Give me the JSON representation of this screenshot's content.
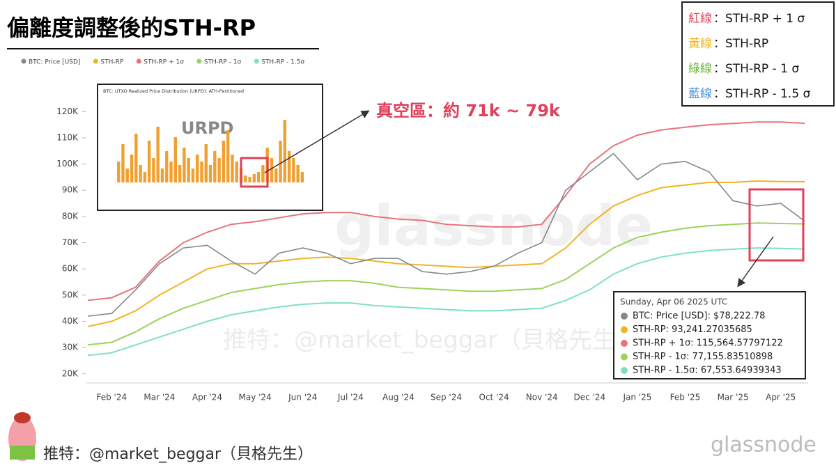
{
  "chart_data": {
    "type": "line",
    "title": "偏離度調整後的STH-RP",
    "categories": [
      null,
      "Feb '24",
      null,
      "Mar '24",
      null,
      "Apr '24",
      null,
      "May '24",
      null,
      "Jun '24",
      null,
      "Jul '24",
      null,
      "Aug '24",
      null,
      "Sep '24",
      null,
      "Oct '24",
      null,
      "Nov '24",
      null,
      "Dec '24",
      null,
      "Jan '25",
      null,
      "Feb '25",
      null,
      "Mar '25",
      null,
      "Apr '25",
      null
    ],
    "series": [
      {
        "name": "BTC: Price [USD]",
        "color": "#7f8a8c",
        "values": [
          42000,
          43000,
          52000,
          62000,
          68000,
          69000,
          63000,
          58000,
          66000,
          68000,
          66000,
          62000,
          64000,
          64000,
          59000,
          58000,
          59000,
          61000,
          66000,
          70000,
          90000,
          97000,
          104000,
          94000,
          100000,
          101000,
          97000,
          86000,
          84000,
          85000,
          78222.78
        ]
      },
      {
        "name": "STH-RP",
        "color": "#f0b323",
        "values": [
          38000,
          40000,
          44000,
          50000,
          55000,
          60000,
          62000,
          62000,
          63000,
          64000,
          64500,
          64000,
          63000,
          62000,
          61500,
          61000,
          60500,
          61000,
          61500,
          62000,
          68000,
          77000,
          84000,
          88000,
          91000,
          92000,
          93000,
          93000,
          93500,
          93300,
          93241.27
        ]
      },
      {
        "name": "STH-RP + 1σ",
        "color": "#e8737a",
        "values": [
          48000,
          49000,
          53000,
          63000,
          70000,
          74000,
          77000,
          78000,
          79500,
          81000,
          81500,
          81500,
          80000,
          79000,
          78500,
          77000,
          76500,
          76000,
          76000,
          77000,
          88000,
          100000,
          107000,
          111000,
          113000,
          114000,
          115000,
          115500,
          116000,
          116000,
          115564.58
        ]
      },
      {
        "name": "STH-RP - 1σ",
        "color": "#9bd35a",
        "values": [
          31000,
          32000,
          36000,
          41000,
          45000,
          48000,
          51000,
          52500,
          54000,
          55000,
          55500,
          55500,
          54500,
          53000,
          52500,
          52000,
          51500,
          51500,
          52000,
          52500,
          56000,
          62000,
          68000,
          72000,
          74000,
          75500,
          76500,
          77000,
          77500,
          77300,
          77155.84
        ]
      },
      {
        "name": "STH-RP - 1.5σ",
        "color": "#7ee0c2",
        "values": [
          27000,
          28000,
          31000,
          34000,
          37000,
          40000,
          42500,
          44000,
          45500,
          46500,
          47000,
          47000,
          46000,
          45500,
          45000,
          44500,
          44000,
          44000,
          44500,
          45000,
          48000,
          52000,
          58000,
          62000,
          64500,
          66000,
          67000,
          67500,
          68000,
          67800,
          67553.65
        ]
      }
    ],
    "ylim": [
      16500,
      136000
    ],
    "yticks": [
      {
        "value": 20000,
        "label": "20K"
      },
      {
        "value": 30000,
        "label": "30K"
      },
      {
        "value": 40000,
        "label": "40K"
      },
      {
        "value": 50000,
        "label": "50K"
      },
      {
        "value": 60000,
        "label": "60K"
      },
      {
        "value": 70000,
        "label": "70K"
      },
      {
        "value": 80000,
        "label": "80K"
      },
      {
        "value": 90000,
        "label": "90K"
      },
      {
        "value": 100000,
        "label": "100K"
      },
      {
        "value": 110000,
        "label": "110K"
      },
      {
        "value": 120000,
        "label": "120K"
      }
    ],
    "legend_box": [
      {
        "prefix": "紅線",
        "color": "#e8475f",
        "text": "：STH-RP + 1 σ"
      },
      {
        "prefix": "黃線",
        "color": "#f0b323",
        "text": "：STH-RP"
      },
      {
        "prefix": "綠線",
        "color": "#6cb843",
        "text": "：STH-RP - 1 σ"
      },
      {
        "prefix": "藍線",
        "color": "#4a90d9",
        "text": "：STH-RP - 1.5 σ"
      }
    ],
    "annotation": "真空區：約 71k ~ 79k",
    "tooltip": {
      "date": "Sunday, Apr 06 2025 UTC",
      "lines": [
        "BTC: Price [USD]: $78,222.78",
        "STH-RP: 93,241.27035685",
        "STH-RP + 1σ: 115,564.57797122",
        "STH-RP - 1σ: 77,155.83510898",
        "STH-RP - 1.5σ: 67,553.64939343"
      ]
    },
    "inset": {
      "title": "BTC: UTXO Realized Price Distribution (URPD): ATH-Partitioned",
      "label": "URPD",
      "values": [
        30,
        55,
        20,
        40,
        70,
        25,
        15,
        60,
        35,
        80,
        20,
        45,
        30,
        65,
        25,
        50,
        35,
        20,
        40,
        30,
        55,
        25,
        45,
        35,
        60,
        75,
        40,
        30,
        20,
        10,
        8,
        12,
        15,
        25,
        50,
        35,
        20,
        60,
        90,
        45,
        35,
        25,
        15
      ]
    },
    "watermark": "glassnode",
    "credit": "推特：@market_beggar（貝格先生）"
  }
}
